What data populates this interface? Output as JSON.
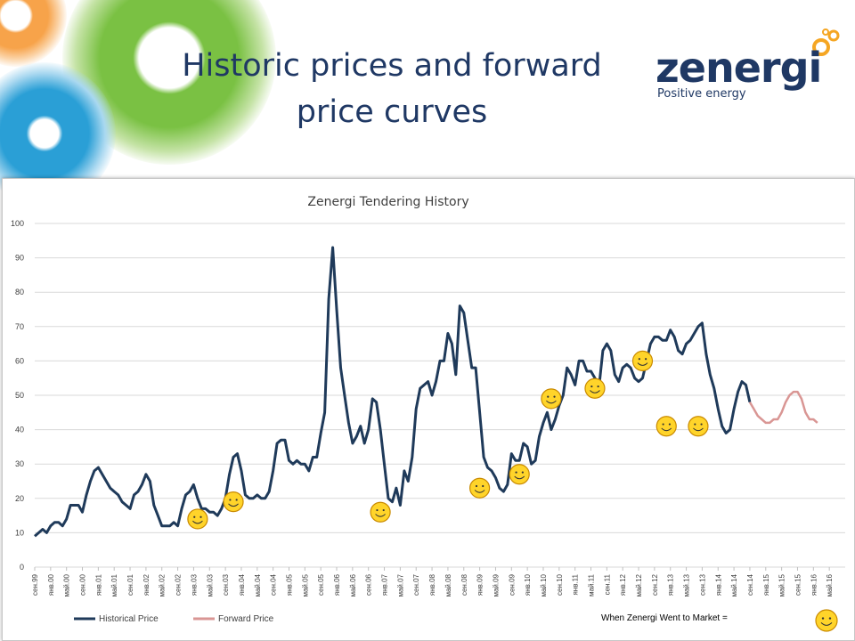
{
  "slide": {
    "title": "Historic prices and forward price curves"
  },
  "logo": {
    "name": "zenergi",
    "tagline": "Positive energy"
  },
  "colors": {
    "title": "#1f3864",
    "historical": "#1f3a5a",
    "forward": "#d99694",
    "grid": "#d9d9d9",
    "marker_fill": "#ffd42a",
    "marker_stroke": "#c98a00",
    "logo_text": "#1f3864",
    "logo_orange": "#f5a623"
  },
  "chart_data": {
    "type": "line",
    "title": "Zenergi Tendering History",
    "ylim": [
      0,
      100
    ],
    "yticks": [
      0,
      10,
      20,
      30,
      40,
      50,
      60,
      70,
      80,
      90,
      100
    ],
    "grid": true,
    "legend_position": "bottom-left",
    "x_start": "сен.99",
    "xtick_labels": [
      "сен.99",
      "янв.00",
      "май.00",
      "сен.00",
      "янв.01",
      "май.01",
      "сен.01",
      "янв.02",
      "май.02",
      "сен.02",
      "янв.03",
      "май.03",
      "сен.03",
      "янв.04",
      "май.04",
      "сен.04",
      "янв.05",
      "май.05",
      "сен.05",
      "янв.06",
      "май.06",
      "сен.06",
      "янв.07",
      "май.07",
      "сен.07",
      "янв.08",
      "май.08",
      "сен.08",
      "янв.09",
      "май.09",
      "сен.09",
      "янв.10",
      "май.10",
      "сен.10",
      "янв.11",
      "май.11",
      "сен.11",
      "янв.12",
      "май.12",
      "сен.12",
      "янв.13",
      "май.13",
      "сен.13",
      "янв.14",
      "май.14",
      "сен.14",
      "янв.15",
      "май.15",
      "сен.15",
      "янв.16",
      "май.16"
    ],
    "series": [
      {
        "name": "Historical Price",
        "values": [
          9,
          10,
          11,
          10,
          12,
          13,
          13,
          12,
          14,
          18,
          18,
          18,
          16,
          21,
          25,
          28,
          29,
          27,
          25,
          23,
          22,
          21,
          19,
          18,
          17,
          21,
          22,
          24,
          27,
          25,
          18,
          15,
          12,
          12,
          12,
          13,
          12,
          17,
          21,
          22,
          24,
          20,
          17,
          17,
          16,
          16,
          15,
          17,
          20,
          27,
          32,
          33,
          28,
          21,
          20,
          20,
          21,
          20,
          20,
          22,
          28,
          36,
          37,
          37,
          31,
          30,
          31,
          30,
          30,
          28,
          32,
          32,
          39,
          45,
          78,
          93,
          75,
          58,
          50,
          42,
          36,
          38,
          41,
          36,
          40,
          49,
          48,
          40,
          30,
          20,
          19,
          23,
          18,
          28,
          25,
          32,
          46,
          52,
          53,
          54,
          50,
          54,
          60,
          60,
          68,
          65,
          56,
          76,
          74,
          66,
          58,
          58,
          45,
          32,
          29,
          28,
          26,
          23,
          22,
          24,
          33,
          31,
          31,
          36,
          35,
          30,
          31,
          38,
          42,
          45,
          40,
          43,
          47,
          50,
          58,
          56,
          53,
          60,
          60,
          57,
          57,
          55,
          52,
          63,
          65,
          63,
          56,
          54,
          58,
          59,
          58,
          55,
          54,
          55,
          60,
          65,
          67,
          67,
          66,
          66,
          69,
          67,
          63,
          62,
          65,
          66,
          68,
          70,
          71,
          62,
          56,
          52,
          46,
          41,
          39,
          40,
          46,
          51,
          54,
          53,
          48
        ]
      },
      {
        "name": "Forward Price",
        "offset": 180,
        "values": [
          48,
          46,
          44,
          43,
          42,
          42,
          43,
          43,
          45,
          48,
          50,
          51,
          51,
          49,
          45,
          43,
          43,
          42
        ]
      }
    ],
    "market_events": [
      {
        "date": "фев.03",
        "value": 14
      },
      {
        "date": "ноя.03",
        "value": 19
      },
      {
        "date": "дек.06",
        "value": 16
      },
      {
        "date": "янв.09",
        "value": 23
      },
      {
        "date": "ноя.09",
        "value": 27
      },
      {
        "date": "июл.10",
        "value": 49
      },
      {
        "date": "июн.11",
        "value": 52
      },
      {
        "date": "июн.12",
        "value": 60
      },
      {
        "date": "дек.12",
        "value": 41
      },
      {
        "date": "авг.13",
        "value": 41
      }
    ],
    "market_legend": "When Zenergi Went to Market ="
  }
}
